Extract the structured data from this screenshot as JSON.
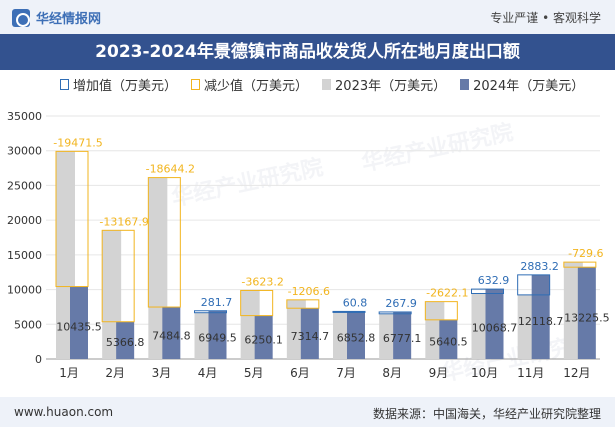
{
  "header": {
    "brand": "华经情报网",
    "tagline": "专业严谨 • 客观科学",
    "title": "2023-2024年景德镇市商品收发货人所在地月度出口额"
  },
  "legend": {
    "increase": "增加值（万美元）",
    "decrease": "减少值（万美元）",
    "y2023": "2023年（万美元）",
    "y2024": "2024年（万美元）"
  },
  "footer": {
    "url": "www.huaon.com",
    "source": "数据来源：中国海关，华经产业研究院整理"
  },
  "watermarks": [
    "华经产业研究院",
    "www.huaon.com"
  ],
  "colors": {
    "y2023": "#d3d3d3",
    "y2024": "#667aa8",
    "increase": "#2f6db5",
    "decrease": "#f2b51f"
  },
  "chart_data": {
    "type": "bar",
    "categories": [
      "1月",
      "2月",
      "3月",
      "4月",
      "5月",
      "6月",
      "7月",
      "8月",
      "9月",
      "10月",
      "11月",
      "12月"
    ],
    "ylim": [
      0,
      35000
    ],
    "yticks": [
      0,
      5000,
      10000,
      15000,
      20000,
      25000,
      30000,
      35000
    ],
    "series": [
      {
        "name": "2023年（万美元）",
        "values": [
          29907.0,
          18534.7,
          26129.0,
          6667.8,
          9873.3,
          8521.3,
          6792.0,
          6509.2,
          8262.6,
          9435.8,
          9235.5,
          13955.1
        ]
      },
      {
        "name": "2024年（万美元）",
        "values": [
          10435.5,
          5366.8,
          7484.8,
          6949.5,
          6250.1,
          7314.7,
          6852.8,
          6777.1,
          5640.5,
          10068.7,
          12118.7,
          13225.5
        ]
      }
    ],
    "changes": {
      "labels": [
        "-19471.5",
        "-13167.9",
        "-18644.2",
        "281.7",
        "-3623.2",
        "-1206.6",
        "60.8",
        "267.9",
        "-2622.1",
        "632.9",
        "2883.2",
        "-729.6"
      ],
      "values": [
        -19471.5,
        -13167.9,
        -18644.2,
        281.7,
        -3623.2,
        -1206.6,
        60.8,
        267.9,
        -2622.1,
        632.9,
        2883.2,
        -729.6
      ]
    },
    "bar_labels": [
      "10435.5",
      "5366.8",
      "7484.8",
      "6949.5",
      "6250.1",
      "7314.7",
      "6852.8",
      "6777.1",
      "5640.5",
      "10068.7",
      "12118.7",
      "13225.5"
    ],
    "grid": true
  }
}
